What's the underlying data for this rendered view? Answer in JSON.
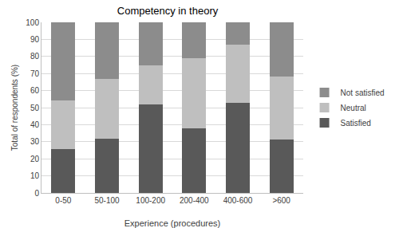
{
  "chart_data": {
    "type": "bar",
    "title": "Competency in theory",
    "x_label": "Experience (procedures)",
    "y_label": "Total of respondents (%)",
    "categories": [
      "0-50",
      "50-100",
      "100-200",
      "200-400",
      "400-600",
      ">600"
    ],
    "series": [
      {
        "name": "Satisfied",
        "color": "#595959",
        "values": [
          25.5,
          32,
          52,
          38,
          53,
          31.5
        ]
      },
      {
        "name": "Neutral",
        "color": "#bfbfbf",
        "values": [
          28.5,
          35,
          23,
          41,
          34,
          36.5
        ]
      },
      {
        "name": "Not satisfied",
        "color": "#8c8c8c",
        "values": [
          46,
          33,
          25,
          21,
          13,
          32
        ]
      }
    ],
    "stacked": true,
    "grid": true,
    "legend": "right",
    "ylim": [
      0,
      100
    ],
    "yticks": [
      0,
      10,
      20,
      30,
      40,
      50,
      60,
      70,
      80,
      90,
      100
    ]
  }
}
